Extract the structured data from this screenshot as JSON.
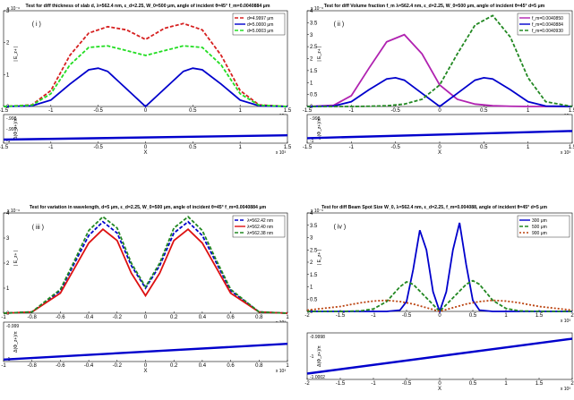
{
  "chart_data": [
    {
      "type": "line",
      "title": "Test for diff thickness of slab d, λ=562.4 nm, ε_d=2.25, W_0=500 μm, angle of incident θ=45° f_m=0.0040884 μm",
      "panel_label": "( i )",
      "xlim": [
        -1.5,
        1.5
      ],
      "ylim": [
        0,
        3
      ],
      "x_ticks": [
        "-1.5",
        "-1",
        "-0.5",
        "0",
        "0.5",
        "1",
        "1.5"
      ],
      "y_ticks": [
        "0",
        "1",
        "2",
        "3"
      ],
      "y_exponent": "x 10⁻⁶",
      "x_exponent": "x 10³",
      "ylabel": "| E_z+ |",
      "legend": "top-right",
      "series": [
        {
          "name": "d=4.9997 μm",
          "color": "#d62020",
          "dash": "4,2",
          "x": [
            -1.5,
            -1.2,
            -1.0,
            -0.8,
            -0.6,
            -0.4,
            -0.2,
            0,
            0.2,
            0.4,
            0.6,
            0.8,
            1.0,
            1.2,
            1.5
          ],
          "y": [
            0,
            0.05,
            0.5,
            1.6,
            2.3,
            2.5,
            2.4,
            2.1,
            2.45,
            2.6,
            2.4,
            1.6,
            0.5,
            0.05,
            0
          ]
        },
        {
          "name": "d=5.0000 μm",
          "color": "#0000cc",
          "dash": "",
          "x": [
            -1.5,
            -1.2,
            -1.0,
            -0.8,
            -0.6,
            -0.5,
            -0.4,
            -0.2,
            0,
            0.2,
            0.4,
            0.5,
            0.6,
            0.8,
            1.0,
            1.2,
            1.5
          ],
          "y": [
            0,
            0.02,
            0.2,
            0.7,
            1.15,
            1.2,
            1.1,
            0.55,
            0,
            0.55,
            1.1,
            1.2,
            1.15,
            0.7,
            0.2,
            0.02,
            0
          ]
        },
        {
          "name": "d=5.0003 μm",
          "color": "#22dd22",
          "dash": "4,2",
          "x": [
            -1.5,
            -1.2,
            -1.0,
            -0.8,
            -0.6,
            -0.4,
            -0.2,
            0,
            0.2,
            0.4,
            0.6,
            0.8,
            1.0,
            1.2,
            1.5
          ],
          "y": [
            0,
            0.04,
            0.4,
            1.3,
            1.85,
            1.9,
            1.75,
            1.6,
            1.75,
            1.9,
            1.85,
            1.3,
            0.4,
            0.04,
            0
          ]
        }
      ],
      "sub": {
        "ylabel": "Δ(Φ_z+)/π",
        "y_ticks": [
          "-.998",
          "-.999",
          "-1"
        ],
        "xlabel": "X",
        "x_ticks": [
          "-1.5",
          "-1",
          "-0.5",
          "0",
          "0.5",
          "1",
          "1.5"
        ],
        "x_exponent": "x 10³",
        "line": {
          "x": [
            -1.5,
            1.5
          ],
          "y": [
            -0.99975,
            -0.99945
          ]
        },
        "ylim": [
          -1.0,
          -0.998
        ]
      }
    },
    {
      "type": "line",
      "title": "Test for diff Volume fraction f_m λ=562.4 nm, ε_d=2.25, W_0=500 μm, angle of incident θ=45° d=5 μm",
      "panel_label": "( ii )",
      "xlim": [
        -1.5,
        1.5
      ],
      "ylim": [
        0,
        4
      ],
      "x_ticks": [
        "-1.5",
        "-1",
        "-0.5",
        "0",
        "0.5",
        "1",
        "1.5"
      ],
      "y_ticks": [
        "0",
        "0.5",
        "1",
        "1.5",
        "2",
        "2.5",
        "3",
        "3.5",
        "4"
      ],
      "y_exponent": "x 10⁻⁶",
      "x_exponent": "x 10³",
      "ylabel": "| E_z+ |",
      "legend": "top-right",
      "series": [
        {
          "name": "f_m=0.0040850",
          "color": "#b022b0",
          "dash": "",
          "x": [
            -1.5,
            -1.2,
            -1.0,
            -0.8,
            -0.6,
            -0.4,
            -0.2,
            0,
            0.2,
            0.4,
            0.6,
            0.8,
            1.0,
            1.2,
            1.5
          ],
          "y": [
            0,
            0.05,
            0.45,
            1.6,
            2.7,
            3.0,
            2.2,
            0.9,
            0.3,
            0.1,
            0.03,
            0.01,
            0,
            0,
            0
          ]
        },
        {
          "name": "f_m=0.0040884",
          "color": "#0000cc",
          "dash": "",
          "x": [
            -1.5,
            -1.2,
            -1.0,
            -0.8,
            -0.6,
            -0.5,
            -0.4,
            -0.2,
            0,
            0.2,
            0.4,
            0.5,
            0.6,
            0.8,
            1.0,
            1.2,
            1.5
          ],
          "y": [
            0,
            0.02,
            0.2,
            0.7,
            1.15,
            1.2,
            1.1,
            0.55,
            0,
            0.55,
            1.1,
            1.2,
            1.15,
            0.7,
            0.2,
            0.02,
            0
          ]
        },
        {
          "name": "f_m=0.0040930",
          "color": "#228822",
          "dash": "4,2",
          "x": [
            -1.5,
            -1.2,
            -1.0,
            -0.8,
            -0.6,
            -0.4,
            -0.2,
            0,
            0.2,
            0.4,
            0.6,
            0.8,
            1.0,
            1.2,
            1.5
          ],
          "y": [
            0,
            0,
            0,
            0.01,
            0.03,
            0.1,
            0.3,
            0.9,
            2.2,
            3.4,
            3.8,
            2.9,
            1.2,
            0.2,
            0
          ]
        }
      ],
      "sub": {
        "ylabel": "Δ(Φ_z+)/π",
        "y_ticks": [
          "-.998",
          "-1"
        ],
        "xlabel": "X",
        "x_ticks": [
          "-1.5",
          "-1",
          "-0.5",
          "0",
          "0.5",
          "1",
          "1.5"
        ],
        "x_exponent": "x 10³",
        "line": {
          "x": [
            -1.5,
            1.5
          ],
          "y": [
            -0.99965,
            -0.99915
          ]
        },
        "ylim": [
          -1.0,
          -0.998
        ]
      }
    },
    {
      "type": "line",
      "title": "Test for variation in wavelength, d=5 μm, ε_d=2.25, W_0=500 μm, angle of incident θ=45° f_m=0.0040884 μm",
      "panel_label": "( iii )",
      "xlim": [
        -1,
        1
      ],
      "ylim": [
        0,
        4
      ],
      "x_ticks": [
        "-1",
        "-0.8",
        "-0.6",
        "-0.4",
        "-0.2",
        "0",
        "0.2",
        "0.4",
        "0.6",
        "0.8",
        "1"
      ],
      "y_ticks": [
        "0",
        "1",
        "2",
        "3",
        "4"
      ],
      "y_exponent": "x 10⁻⁶",
      "x_exponent": "x 10³",
      "ylabel": "| E_z+ |",
      "legend": "top-right",
      "series": [
        {
          "name": "λ=562.42 nm",
          "color": "#0000cc",
          "dash": "4,2",
          "x": [
            -1,
            -0.8,
            -0.6,
            -0.5,
            -0.4,
            -0.3,
            -0.2,
            -0.1,
            0,
            0.1,
            0.2,
            0.3,
            0.4,
            0.5,
            0.6,
            0.8,
            1
          ],
          "y": [
            0,
            0.05,
            0.9,
            2.0,
            3.1,
            3.65,
            3.2,
            1.9,
            1.0,
            1.9,
            3.2,
            3.65,
            3.1,
            2.0,
            0.9,
            0.05,
            0
          ]
        },
        {
          "name": "λ=562.40 nm",
          "color": "#dd1111",
          "dash": "",
          "x": [
            -1,
            -0.8,
            -0.6,
            -0.5,
            -0.4,
            -0.3,
            -0.2,
            -0.1,
            0,
            0.1,
            0.2,
            0.3,
            0.4,
            0.5,
            0.6,
            0.8,
            1
          ],
          "y": [
            0,
            0.05,
            0.8,
            1.8,
            2.8,
            3.35,
            2.9,
            1.6,
            0.7,
            1.6,
            2.9,
            3.35,
            2.8,
            1.8,
            0.8,
            0.05,
            0
          ]
        },
        {
          "name": "λ=562.38 nm",
          "color": "#228822",
          "dash": "4,2",
          "x": [
            -1,
            -0.8,
            -0.6,
            -0.5,
            -0.4,
            -0.3,
            -0.2,
            -0.1,
            0,
            0.1,
            0.2,
            0.3,
            0.4,
            0.5,
            0.6,
            0.8,
            1
          ],
          "y": [
            0,
            0.05,
            0.95,
            2.1,
            3.3,
            3.85,
            3.4,
            2.0,
            1.05,
            2.0,
            3.4,
            3.85,
            3.3,
            2.1,
            0.95,
            0.05,
            0
          ]
        }
      ],
      "sub": {
        "ylabel": "Δ(Φ_z+)/π",
        "y_ticks": [
          "-0.999",
          "-1"
        ],
        "xlabel": "X",
        "x_ticks": [
          "-1",
          "-0.8",
          "-0.6",
          "-0.4",
          "-0.2",
          "0",
          "0.2",
          "0.4",
          "0.6",
          "0.8",
          "1"
        ],
        "x_exponent": "x 10³",
        "line": {
          "x": [
            -1,
            1
          ],
          "y": [
            -0.99995,
            -0.99955
          ]
        },
        "ylim": [
          -1.0,
          -0.999
        ]
      }
    },
    {
      "type": "line",
      "title": "Test for diff Beam Spot Size W_0, λ=562.4 nm, ε_d=2.25, f_m=0.004088, angle of incident θ=45° d=5 μm",
      "panel_label": "( iv )",
      "xlim": [
        -2,
        2
      ],
      "ylim": [
        0,
        4
      ],
      "x_ticks": [
        "-2",
        "-1.5",
        "-1",
        "-0.5",
        "0",
        "0.5",
        "1",
        "1.5",
        "2"
      ],
      "y_ticks": [
        "0",
        "0.5",
        "1",
        "1.5",
        "2",
        "2.5",
        "3",
        "3.5",
        "4"
      ],
      "y_exponent": "x 10⁻⁶",
      "x_exponent": "x 10³",
      "ylabel": "| E_z+ |",
      "legend": "top-right",
      "series": [
        {
          "name": "300 μm",
          "color": "#0000cc",
          "dash": "",
          "x": [
            -2,
            -0.8,
            -0.6,
            -0.5,
            -0.4,
            -0.3,
            -0.2,
            -0.1,
            0,
            0.1,
            0.2,
            0.3,
            0.4,
            0.5,
            0.6,
            0.8,
            2
          ],
          "y": [
            0,
            0,
            0.05,
            0.4,
            1.7,
            3.3,
            2.5,
            0.8,
            0,
            0.8,
            2.5,
            3.6,
            1.9,
            0.45,
            0.05,
            0,
            0
          ]
        },
        {
          "name": "500 μm",
          "color": "#228822",
          "dash": "4,2",
          "x": [
            -2,
            -1.5,
            -1.2,
            -1.0,
            -0.8,
            -0.6,
            -0.5,
            -0.4,
            -0.2,
            0,
            0.2,
            0.4,
            0.5,
            0.6,
            0.8,
            1.0,
            1.2,
            1.5,
            2
          ],
          "y": [
            0,
            0,
            0.02,
            0.1,
            0.4,
            1.0,
            1.2,
            1.1,
            0.55,
            0,
            0.55,
            1.1,
            1.25,
            1.1,
            0.45,
            0.12,
            0.02,
            0,
            0
          ]
        },
        {
          "name": "900 μm",
          "color": "#bb4411",
          "dash": "2,2",
          "x": [
            -2,
            -1.5,
            -1.2,
            -1.0,
            -0.8,
            -0.6,
            -0.4,
            -0.2,
            0,
            0.2,
            0.4,
            0.6,
            0.8,
            1.0,
            1.2,
            1.5,
            2
          ],
          "y": [
            0.05,
            0.2,
            0.35,
            0.42,
            0.45,
            0.4,
            0.3,
            0.15,
            0,
            0.15,
            0.3,
            0.4,
            0.45,
            0.42,
            0.35,
            0.2,
            0.05
          ]
        }
      ],
      "sub": {
        "ylabel": "Δ(Φ_z+)/π",
        "y_ticks": [
          "-0.9998",
          "-1",
          "-1.0002"
        ],
        "xlabel": "X",
        "x_ticks": [
          "-2",
          "-1.5",
          "-1",
          "-0.5",
          "0",
          "0.5",
          "1",
          "1.5",
          "2"
        ],
        "x_exponent": "x 10³",
        "line": {
          "x": [
            -2,
            2
          ],
          "y": [
            -1.00015,
            -0.99985
          ]
        },
        "ylim": [
          -1.0002,
          -0.9998
        ]
      }
    }
  ]
}
